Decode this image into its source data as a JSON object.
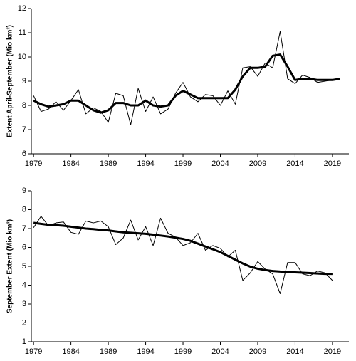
{
  "chart_data": [
    {
      "type": "line",
      "y_label": "Extent April-September (Mio km²)",
      "x": [
        1979,
        1980,
        1981,
        1982,
        1983,
        1984,
        1985,
        1986,
        1987,
        1988,
        1989,
        1990,
        1991,
        1992,
        1993,
        1994,
        1995,
        1996,
        1997,
        1998,
        1999,
        2000,
        2001,
        2002,
        2003,
        2004,
        2005,
        2006,
        2007,
        2008,
        2009,
        2010,
        2011,
        2012,
        2013,
        2014,
        2015,
        2016,
        2017,
        2018,
        2019,
        2020
      ],
      "series": [
        {
          "color": "#000000",
          "width": 1,
          "values": [
            8.4,
            7.75,
            7.85,
            8.15,
            7.8,
            8.2,
            8.65,
            7.65,
            7.9,
            7.75,
            7.3,
            8.5,
            8.4,
            7.2,
            8.7,
            7.75,
            8.35,
            7.65,
            7.85,
            8.5,
            8.95,
            8.35,
            8.15,
            8.45,
            8.4,
            8.0,
            8.6,
            8.05,
            9.55,
            9.6,
            9.2,
            9.75,
            9.55,
            11.05,
            9.1,
            8.9,
            9.25,
            9.15,
            8.95,
            9.0,
            9.05,
            9.1
          ]
        },
        {
          "color": "#000000",
          "width": 3,
          "values": [
            8.2,
            8.05,
            7.95,
            8.0,
            8.05,
            8.2,
            8.2,
            8.0,
            7.8,
            7.7,
            7.8,
            8.1,
            8.1,
            8.0,
            8.0,
            8.2,
            8.0,
            7.95,
            8.0,
            8.4,
            8.6,
            8.45,
            8.3,
            8.3,
            8.3,
            8.3,
            8.3,
            8.65,
            9.2,
            9.55,
            9.55,
            9.6,
            10.05,
            10.1,
            9.6,
            9.05,
            9.1,
            9.1,
            9.05,
            9.05,
            9.05,
            9.1
          ]
        }
      ],
      "xlim": [
        1978.7,
        2021.2
      ],
      "xticks": [
        1979,
        1984,
        1989,
        1994,
        1999,
        2004,
        2009,
        2014,
        2019
      ],
      "ylim": [
        6,
        12
      ],
      "yticks": [
        6,
        7,
        8,
        9,
        10,
        11,
        12
      ]
    },
    {
      "type": "line",
      "y_label": "September Extent (Mio km²)",
      "x": [
        1979,
        1980,
        1981,
        1982,
        1983,
        1984,
        1985,
        1986,
        1987,
        1988,
        1989,
        1990,
        1991,
        1992,
        1993,
        1994,
        1995,
        1996,
        1997,
        1998,
        1999,
        2000,
        2001,
        2002,
        2003,
        2004,
        2005,
        2006,
        2007,
        2008,
        2009,
        2010,
        2011,
        2012,
        2013,
        2014,
        2015,
        2016,
        2017,
        2018,
        2019
      ],
      "series": [
        {
          "color": "#000000",
          "width": 1,
          "values": [
            7.05,
            7.65,
            7.15,
            7.3,
            7.35,
            6.8,
            6.7,
            7.4,
            7.3,
            7.4,
            7.1,
            6.15,
            6.5,
            7.45,
            6.4,
            7.1,
            6.1,
            7.55,
            6.75,
            6.55,
            6.1,
            6.25,
            6.75,
            5.85,
            6.1,
            5.95,
            5.5,
            5.85,
            4.25,
            4.65,
            5.25,
            4.85,
            4.6,
            3.55,
            5.2,
            5.2,
            4.6,
            4.5,
            4.75,
            4.65,
            4.25
          ]
        },
        {
          "color": "#000000",
          "width": 3,
          "values": [
            7.3,
            7.25,
            7.2,
            7.18,
            7.15,
            7.1,
            7.05,
            7.0,
            6.97,
            6.93,
            6.9,
            6.85,
            6.8,
            6.78,
            6.75,
            6.72,
            6.68,
            6.63,
            6.58,
            6.52,
            6.45,
            6.35,
            6.2,
            6.05,
            5.9,
            5.75,
            5.55,
            5.35,
            5.15,
            4.98,
            4.87,
            4.8,
            4.75,
            4.72,
            4.7,
            4.68,
            4.66,
            4.64,
            4.62,
            4.6,
            4.6
          ]
        }
      ],
      "xlim": [
        1978.7,
        2021.2
      ],
      "xticks": [
        1979,
        1984,
        1989,
        1994,
        1999,
        2004,
        2009,
        2014,
        2019
      ],
      "ylim": [
        1,
        9
      ],
      "yticks": [
        1,
        2,
        3,
        4,
        5,
        6,
        7,
        8,
        9
      ]
    }
  ]
}
